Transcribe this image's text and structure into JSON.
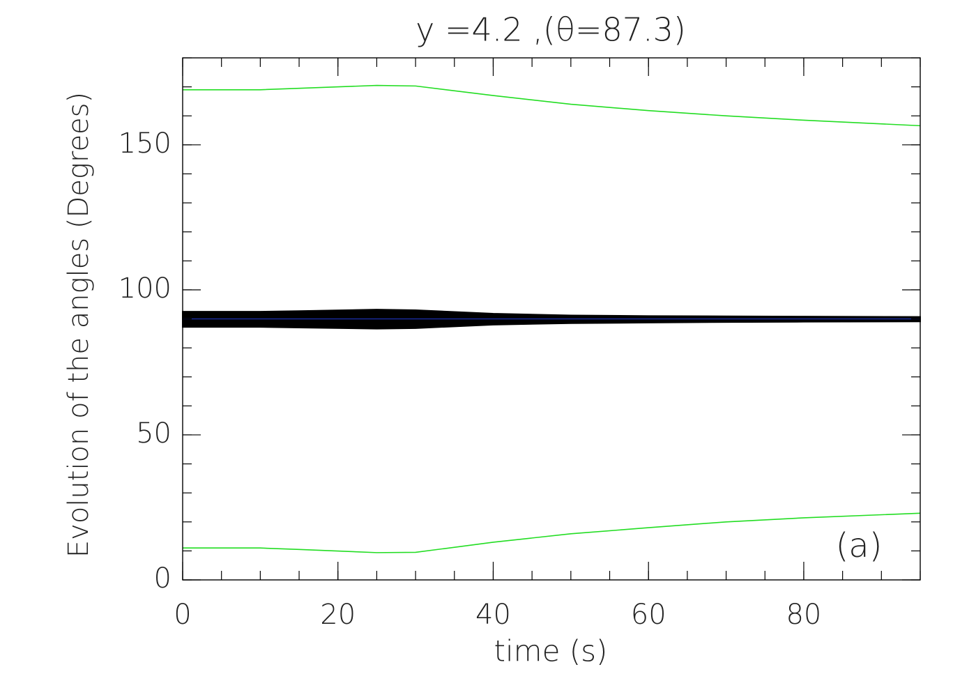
{
  "chart_data": {
    "type": "line",
    "title": "y  =4.2 ,(θ=87.3)",
    "xlabel": "time (s)",
    "ylabel": "Evolution of the angles (Degrees)",
    "annotation": "(a)",
    "x": [
      0,
      10,
      15,
      25,
      30,
      40,
      50,
      60,
      70,
      80,
      95
    ],
    "series": [
      {
        "color": "#22dd22",
        "values": [
          169,
          169,
          169.5,
          170.5,
          170.3,
          167,
          164,
          161.8,
          160,
          158.5,
          156.6
        ]
      },
      {
        "color": "#22dd22",
        "values": [
          11,
          11,
          10.5,
          9.4,
          9.5,
          13,
          15.9,
          18,
          20,
          21.4,
          23
        ]
      },
      {
        "color": "#1a2a9a",
        "values": [
          90,
          90,
          90,
          90,
          90,
          90,
          90,
          90,
          90,
          90,
          90
        ]
      }
    ],
    "band": {
      "color": "#000000",
      "upper": [
        92.5,
        92.5,
        92.7,
        93.2,
        93,
        91.8,
        91.2,
        91,
        90.9,
        90.8,
        90.7
      ],
      "lower": [
        87.2,
        87.2,
        87,
        86.6,
        86.8,
        88,
        88.5,
        88.7,
        88.9,
        89,
        89.1
      ]
    },
    "xlim": [
      0,
      95
    ],
    "ylim": [
      0,
      180
    ],
    "xticks": [
      0,
      20,
      40,
      60,
      80
    ],
    "yticks": [
      0,
      50,
      100,
      150
    ]
  }
}
